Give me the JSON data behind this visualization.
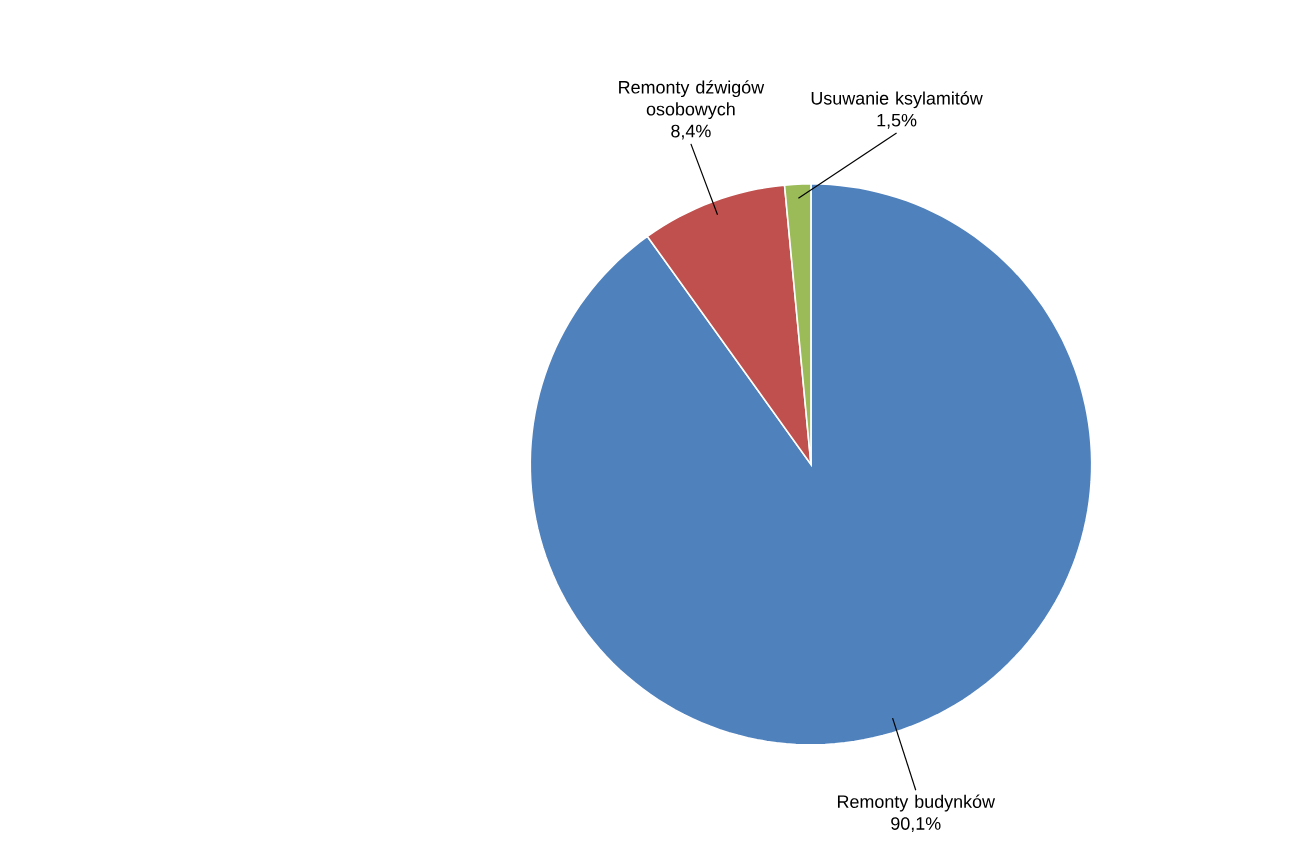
{
  "chart_data": {
    "type": "pie",
    "categories": [
      "Remonty budynków",
      "Remonty dźwigów osobowych",
      "Usuwanie ksylamitów"
    ],
    "values": [
      90.1,
      8.4,
      1.5
    ],
    "value_labels": [
      "90,1%",
      "8,4%",
      "1,5%"
    ],
    "colors": [
      "#4f81bd",
      "#c0504d",
      "#9bbb59"
    ]
  }
}
